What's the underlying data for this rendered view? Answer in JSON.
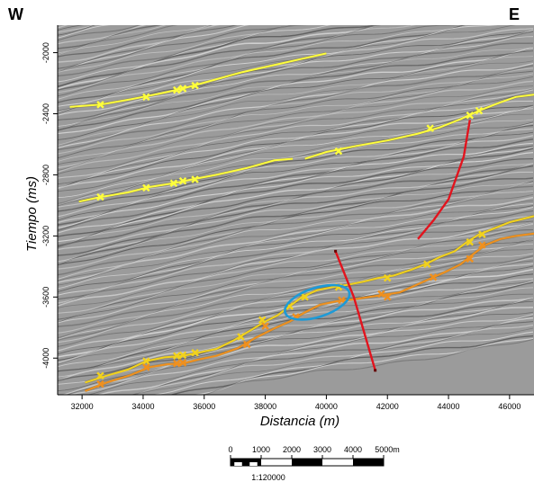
{
  "orientation": {
    "west": "W",
    "east": "E"
  },
  "axes": {
    "x_label": "Distancia (m)",
    "y_label": "Tiempo (ms)",
    "x_ticks": [
      32000,
      34000,
      36000,
      38000,
      40000,
      42000,
      44000,
      46000
    ],
    "y_ticks": [
      -2000,
      -2400,
      -2800,
      -3200,
      -3600,
      -4000
    ],
    "x_range": [
      31200,
      46800
    ],
    "y_range": [
      -1820,
      -4240
    ]
  },
  "scale_bar": {
    "tick_labels": [
      "0",
      "1000",
      "2000",
      "3000",
      "4000",
      "5000m"
    ],
    "ratio": "1:120000"
  },
  "colors": {
    "horizon_upper": "#ffff3c",
    "horizon_lower_yellow": "#f2d21c",
    "horizon_lower_orange": "#f0901e",
    "fault": "#e2141e",
    "ellipse": "#1e9ad6",
    "seismic_background": "#9b9b9b"
  },
  "interpretation": {
    "horizons": [
      {
        "id": "h1",
        "color": "#ffff3c",
        "points": [
          [
            31600,
            -2355
          ],
          [
            32600,
            -2340
          ],
          [
            33600,
            -2305
          ],
          [
            34500,
            -2270
          ],
          [
            35300,
            -2235
          ],
          [
            36200,
            -2185
          ],
          [
            37200,
            -2130
          ],
          [
            38200,
            -2085
          ],
          [
            39100,
            -2045
          ],
          [
            40000,
            -2005
          ]
        ],
        "markers": [
          [
            32600,
            -2340
          ],
          [
            34100,
            -2290
          ],
          [
            35100,
            -2245
          ],
          [
            35300,
            -2235
          ],
          [
            35700,
            -2215
          ]
        ]
      },
      {
        "id": "h2a",
        "color": "#ffff3c",
        "points": [
          [
            31900,
            -2975
          ],
          [
            32600,
            -2945
          ],
          [
            33500,
            -2915
          ],
          [
            34200,
            -2880
          ],
          [
            35000,
            -2855
          ],
          [
            35600,
            -2830
          ],
          [
            36400,
            -2800
          ],
          [
            37400,
            -2755
          ],
          [
            38300,
            -2705
          ],
          [
            38900,
            -2695
          ]
        ],
        "markers": [
          [
            32600,
            -2945
          ],
          [
            34100,
            -2885
          ],
          [
            35000,
            -2855
          ],
          [
            35300,
            -2840
          ],
          [
            35700,
            -2830
          ]
        ]
      },
      {
        "id": "h2b",
        "color": "#ffff3c",
        "points": [
          [
            39300,
            -2695
          ],
          [
            40000,
            -2650
          ],
          [
            41000,
            -2610
          ],
          [
            42000,
            -2575
          ],
          [
            43000,
            -2530
          ],
          [
            43700,
            -2490
          ],
          [
            44400,
            -2435
          ],
          [
            45000,
            -2380
          ],
          [
            45700,
            -2325
          ],
          [
            46200,
            -2290
          ],
          [
            46800,
            -2275
          ]
        ],
        "markers": [
          [
            40400,
            -2645
          ],
          [
            43400,
            -2495
          ],
          [
            44700,
            -2410
          ],
          [
            45000,
            -2380
          ]
        ]
      },
      {
        "id": "h3y",
        "color": "#f2d21c",
        "points": [
          [
            32100,
            -4160
          ],
          [
            32800,
            -4115
          ],
          [
            33500,
            -4075
          ],
          [
            34100,
            -4020
          ],
          [
            34700,
            -3995
          ],
          [
            35300,
            -3985
          ],
          [
            35800,
            -3965
          ],
          [
            36400,
            -3940
          ],
          [
            37000,
            -3880
          ],
          [
            37500,
            -3820
          ],
          [
            38000,
            -3760
          ],
          [
            38400,
            -3720
          ],
          [
            38800,
            -3660
          ],
          [
            39200,
            -3600
          ],
          [
            39700,
            -3555
          ],
          [
            40200,
            -3535
          ],
          [
            40700,
            -3520
          ],
          [
            41200,
            -3500
          ],
          [
            41700,
            -3475
          ],
          [
            42200,
            -3460
          ],
          [
            42800,
            -3420
          ],
          [
            43300,
            -3380
          ],
          [
            43700,
            -3340
          ],
          [
            44200,
            -3300
          ],
          [
            44600,
            -3240
          ],
          [
            45000,
            -3190
          ],
          [
            45500,
            -3150
          ],
          [
            46000,
            -3110
          ],
          [
            46800,
            -3070
          ]
        ],
        "markers": [
          [
            32600,
            -4115
          ],
          [
            34100,
            -4020
          ],
          [
            35100,
            -3985
          ],
          [
            35300,
            -3980
          ],
          [
            35700,
            -3965
          ],
          [
            37200,
            -3860
          ],
          [
            37900,
            -3750
          ],
          [
            38800,
            -3660
          ],
          [
            39300,
            -3600
          ],
          [
            40400,
            -3535
          ],
          [
            42000,
            -3475
          ],
          [
            43300,
            -3385
          ],
          [
            44700,
            -3240
          ],
          [
            45100,
            -3190
          ]
        ]
      },
      {
        "id": "h3o",
        "color": "#f0901e",
        "points": [
          [
            32100,
            -4215
          ],
          [
            32800,
            -4160
          ],
          [
            33600,
            -4110
          ],
          [
            34200,
            -4060
          ],
          [
            34800,
            -4040
          ],
          [
            35300,
            -4035
          ],
          [
            35800,
            -4010
          ],
          [
            36400,
            -3985
          ],
          [
            37100,
            -3935
          ],
          [
            37700,
            -3865
          ],
          [
            38300,
            -3805
          ],
          [
            38800,
            -3760
          ],
          [
            39300,
            -3700
          ],
          [
            39800,
            -3650
          ],
          [
            40400,
            -3625
          ],
          [
            40900,
            -3615
          ],
          [
            41400,
            -3600
          ],
          [
            41900,
            -3585
          ],
          [
            42400,
            -3570
          ],
          [
            42900,
            -3525
          ],
          [
            43400,
            -3480
          ],
          [
            43900,
            -3435
          ],
          [
            44400,
            -3385
          ],
          [
            44800,
            -3320
          ],
          [
            45200,
            -3260
          ],
          [
            45700,
            -3220
          ],
          [
            46200,
            -3200
          ],
          [
            46800,
            -3185
          ]
        ],
        "markers": [
          [
            32600,
            -4170
          ],
          [
            34100,
            -4060
          ],
          [
            35100,
            -4035
          ],
          [
            35300,
            -4030
          ],
          [
            37400,
            -3910
          ],
          [
            38000,
            -3790
          ],
          [
            39000,
            -3730
          ],
          [
            40500,
            -3620
          ],
          [
            41800,
            -3580
          ],
          [
            42000,
            -3600
          ],
          [
            43500,
            -3470
          ],
          [
            44700,
            -3350
          ],
          [
            45100,
            -3260
          ]
        ]
      }
    ],
    "faults": [
      {
        "id": "fault-east",
        "points": [
          [
            44700,
            -2440
          ],
          [
            44500,
            -2680
          ],
          [
            44000,
            -2960
          ],
          [
            43500,
            -3100
          ],
          [
            43000,
            -3220
          ]
        ]
      },
      {
        "id": "fault-center",
        "points": [
          [
            40300,
            -3300
          ],
          [
            40900,
            -3600
          ],
          [
            41600,
            -4080
          ]
        ]
      }
    ],
    "ellipse": {
      "cx": 39700,
      "cy": -3635,
      "rx_m": 1100,
      "ry_ms": 95
    }
  }
}
